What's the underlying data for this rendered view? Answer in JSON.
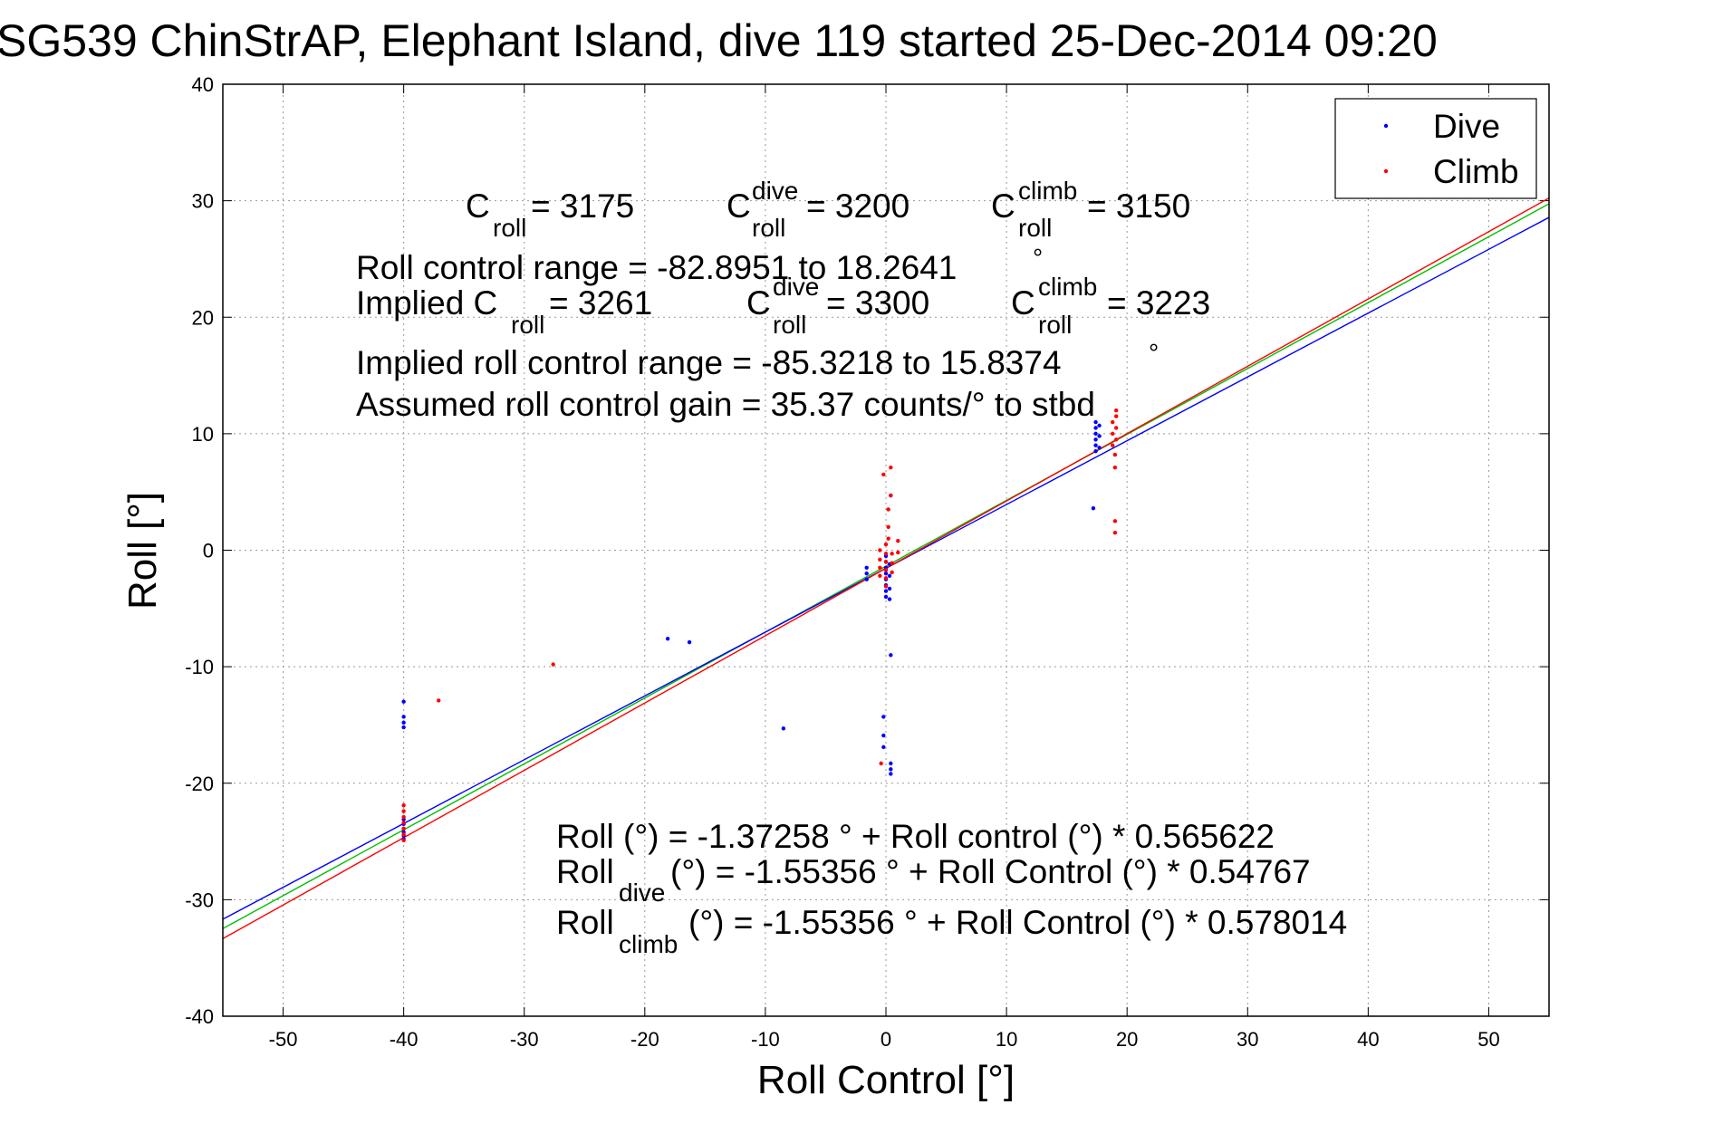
{
  "chart_data": {
    "type": "scatter",
    "title": "SG539 ChinStrAP, Elephant Island, dive 119 started 25-Dec-2014 09:20",
    "xlabel": "Roll Control [°]",
    "ylabel": "Roll [°]",
    "xlim": [
      -55,
      55
    ],
    "ylim": [
      -40,
      40
    ],
    "xticks": [
      -50,
      -40,
      -30,
      -20,
      -10,
      0,
      10,
      20,
      30,
      40,
      50
    ],
    "yticks": [
      -40,
      -30,
      -20,
      -10,
      0,
      10,
      20,
      30,
      40
    ],
    "grid": true,
    "legend_position": "top-right",
    "legend": [
      "Dive",
      "Climb"
    ],
    "series": [
      {
        "name": "Dive",
        "color": "#0000ff",
        "marker": "point",
        "points": [
          [
            -40,
            -13.0
          ],
          [
            -40,
            -14.3
          ],
          [
            -40,
            -14.8
          ],
          [
            -40,
            -15.2
          ],
          [
            -40,
            -23.1
          ],
          [
            -40,
            -23.5
          ],
          [
            -40,
            -23.9
          ],
          [
            -40,
            -24.2
          ],
          [
            -40,
            -24.5
          ],
          [
            -40,
            -24.8
          ],
          [
            -18.1,
            -7.6
          ],
          [
            -16.3,
            -7.9
          ],
          [
            -8.5,
            -15.3
          ],
          [
            -1.6,
            -1.5
          ],
          [
            -1.6,
            -2.0
          ],
          [
            -1.6,
            -2.5
          ],
          [
            -0.2,
            -14.3
          ],
          [
            -0.2,
            -15.9
          ],
          [
            -0.2,
            -16.9
          ],
          [
            0.0,
            -0.5
          ],
          [
            0.0,
            -1.0
          ],
          [
            0.0,
            -1.5
          ],
          [
            0.0,
            -2.0
          ],
          [
            0.0,
            -2.5
          ],
          [
            0.0,
            -3.0
          ],
          [
            0.0,
            -3.5
          ],
          [
            0.0,
            -4.0
          ],
          [
            0.3,
            -1.2
          ],
          [
            0.3,
            -2.2
          ],
          [
            0.3,
            -3.3
          ],
          [
            0.3,
            -4.2
          ],
          [
            0.4,
            4.7
          ],
          [
            0.4,
            -9.0
          ],
          [
            0.4,
            -18.3
          ],
          [
            0.4,
            -18.8
          ],
          [
            0.4,
            -19.2
          ],
          [
            17.2,
            3.6
          ],
          [
            17.4,
            8.5
          ],
          [
            17.4,
            9.0
          ],
          [
            17.4,
            9.5
          ],
          [
            17.4,
            10.0
          ],
          [
            17.4,
            10.5
          ],
          [
            17.4,
            11.0
          ],
          [
            17.7,
            8.8
          ],
          [
            17.7,
            9.8
          ],
          [
            17.7,
            10.7
          ]
        ]
      },
      {
        "name": "Climb",
        "color": "#ff0000",
        "marker": "point",
        "points": [
          [
            -40,
            -21.9
          ],
          [
            -40,
            -22.4
          ],
          [
            -40,
            -22.9
          ],
          [
            -40,
            -23.4
          ],
          [
            -40,
            -23.9
          ],
          [
            -40,
            -24.4
          ],
          [
            -40,
            -24.9
          ],
          [
            -37.1,
            -12.9
          ],
          [
            -27.6,
            -9.8
          ],
          [
            -0.5,
            0.0
          ],
          [
            -0.5,
            -0.8
          ],
          [
            -0.5,
            -1.5
          ],
          [
            -0.5,
            -2.2
          ],
          [
            -0.4,
            -18.3
          ],
          [
            -0.2,
            6.5
          ],
          [
            0.0,
            0.5
          ],
          [
            0.0,
            -0.3
          ],
          [
            0.0,
            -1.0
          ],
          [
            0.0,
            -1.7
          ],
          [
            0.0,
            -2.4
          ],
          [
            0.0,
            -3.1
          ],
          [
            0.2,
            3.5
          ],
          [
            0.2,
            2.0
          ],
          [
            0.2,
            1.0
          ],
          [
            0.4,
            7.1
          ],
          [
            0.4,
            4.7
          ],
          [
            0.5,
            -0.3
          ],
          [
            0.5,
            -1.1
          ],
          [
            0.5,
            -1.9
          ],
          [
            1.0,
            0.8
          ],
          [
            1.0,
            -0.2
          ],
          [
            18.8,
            9.0
          ],
          [
            18.8,
            10.0
          ],
          [
            18.8,
            11.0
          ],
          [
            19.0,
            1.5
          ],
          [
            19.0,
            2.5
          ],
          [
            19.0,
            7.1
          ],
          [
            19.0,
            8.2
          ],
          [
            19.1,
            9.5
          ],
          [
            19.1,
            10.5
          ],
          [
            19.1,
            11.5
          ],
          [
            19.1,
            12.0
          ]
        ]
      }
    ],
    "fit_lines": [
      {
        "name": "all",
        "color": "#00c000",
        "intercept": -1.37258,
        "slope": 0.565622
      },
      {
        "name": "dive",
        "color": "#0000ff",
        "intercept": -1.55356,
        "slope": 0.54767
      },
      {
        "name": "climb",
        "color": "#ff0000",
        "intercept": -1.55356,
        "slope": 0.578014
      }
    ],
    "annotations": {
      "c_roll": {
        "base": "C",
        "sub": "roll",
        "value": " = 3175"
      },
      "c_roll_dive": {
        "base": "C",
        "sub": "roll",
        "sup": "dive",
        "value": " = 3200"
      },
      "c_roll_climb": {
        "base": "C",
        "sub": "roll",
        "sup": "climb",
        "value": " = 3150"
      },
      "range_line": "Roll control range = -82.8951 to 18.2641",
      "implied_prefix": "Implied C",
      "implied_sub": "roll",
      "implied_value": " = 3261",
      "implied_dive": {
        "base": "C",
        "sub": "roll",
        "sup": "dive",
        "value": " = 3300"
      },
      "implied_climb": {
        "base": "C",
        "sub": "roll",
        "sup": "climb",
        "value": " = 3223"
      },
      "implied_range_line": "Implied roll control range = -85.3218 to 15.8374",
      "gain_line": "Assumed roll control gain = 35.37 counts/° to stbd",
      "degree_mark": "°",
      "fit_all_line": "Roll (°) = -1.37258 ° + Roll control (°) * 0.565622",
      "fit_dive_base": "Roll",
      "fit_dive_sub": "dive",
      "fit_dive_rest": " (°) = -1.55356 ° + Roll Control (°) * 0.54767",
      "fit_climb_base": "Roll",
      "fit_climb_sub": "climb",
      "fit_climb_rest": " (°) = -1.55356 ° + Roll Control (°) * 0.578014"
    }
  }
}
